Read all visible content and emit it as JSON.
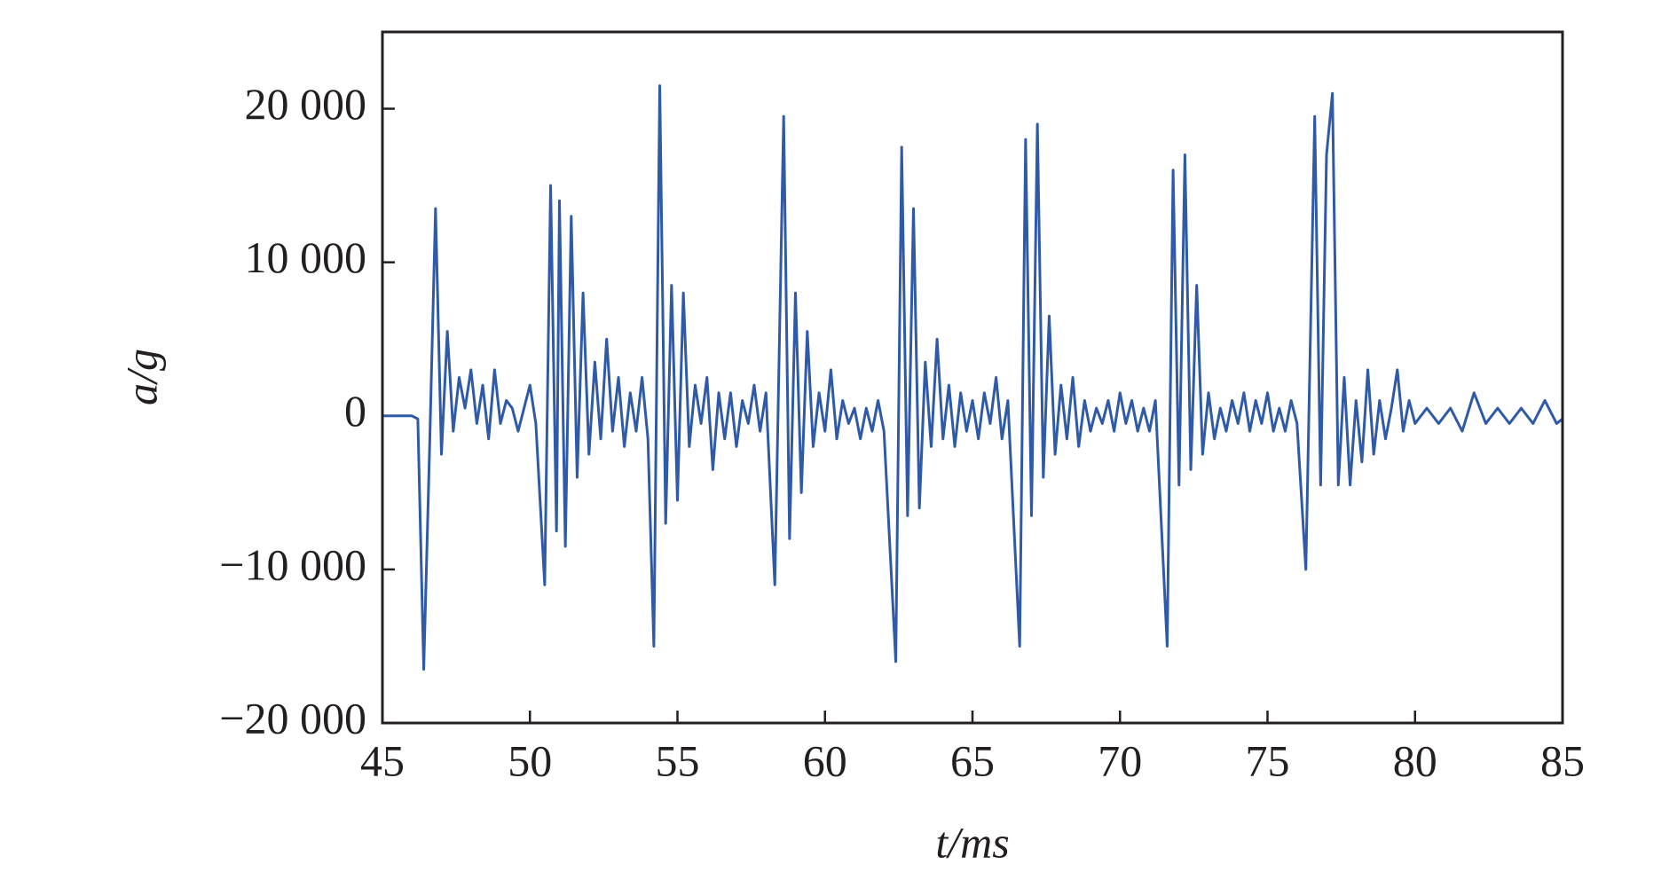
{
  "chart_data": {
    "type": "line",
    "xlabel": "t/ms",
    "ylabel": "a/g",
    "xlim": [
      45,
      85
    ],
    "xticks": [
      45,
      50,
      55,
      60,
      65,
      70,
      75,
      80,
      85
    ],
    "ylim": [
      -20000,
      25000
    ],
    "yticks": [
      {
        "value": -20000,
        "label": "−20 000"
      },
      {
        "value": -10000,
        "label": "−10 000"
      },
      0,
      {
        "value": 10000,
        "label": "10 000"
      },
      {
        "value": 20000,
        "label": "20 000"
      }
    ],
    "color": "#2f5aa8",
    "x": [
      45,
      46,
      46.2,
      46.4,
      46.6,
      46.8,
      47.0,
      47.2,
      47.4,
      47.6,
      47.8,
      48.0,
      48.2,
      48.4,
      48.6,
      48.8,
      49.0,
      49.2,
      49.4,
      49.6,
      49.8,
      50.0,
      50.2,
      50.5,
      50.7,
      50.9,
      51.0,
      51.2,
      51.4,
      51.6,
      51.8,
      52.0,
      52.2,
      52.4,
      52.6,
      52.8,
      53.0,
      53.2,
      53.4,
      53.6,
      53.8,
      54.0,
      54.2,
      54.4,
      54.6,
      54.8,
      55.0,
      55.2,
      55.4,
      55.6,
      55.8,
      56.0,
      56.2,
      56.4,
      56.6,
      56.8,
      57.0,
      57.2,
      57.4,
      57.6,
      57.8,
      58.0,
      58.3,
      58.6,
      58.8,
      59.0,
      59.2,
      59.4,
      59.6,
      59.8,
      60.0,
      60.2,
      60.4,
      60.6,
      60.8,
      61.0,
      61.2,
      61.4,
      61.6,
      61.8,
      62.0,
      62.4,
      62.6,
      62.8,
      63.0,
      63.2,
      63.4,
      63.6,
      63.8,
      64.0,
      64.2,
      64.4,
      64.6,
      64.8,
      65.0,
      65.2,
      65.4,
      65.6,
      65.8,
      66.0,
      66.2,
      66.6,
      66.8,
      67.0,
      67.2,
      67.4,
      67.6,
      67.8,
      68.0,
      68.2,
      68.4,
      68.6,
      68.8,
      69.0,
      69.2,
      69.4,
      69.6,
      69.8,
      70.0,
      70.2,
      70.4,
      70.6,
      70.8,
      71.0,
      71.2,
      71.6,
      71.8,
      72.0,
      72.2,
      72.4,
      72.6,
      72.8,
      73.0,
      73.2,
      73.4,
      73.6,
      73.8,
      74.0,
      74.2,
      74.4,
      74.6,
      74.8,
      75.0,
      75.2,
      75.4,
      75.6,
      75.8,
      76.0,
      76.3,
      76.6,
      76.8,
      77.0,
      77.2,
      77.4,
      77.6,
      77.8,
      78.0,
      78.2,
      78.4,
      78.6,
      78.8,
      79.0,
      79.2,
      79.4,
      79.6,
      79.8,
      80.0,
      80.4,
      80.8,
      81.2,
      81.6,
      82.0,
      82.4,
      82.8,
      83.2,
      83.6,
      84.0,
      84.4,
      84.8,
      85.0
    ],
    "values": [
      0,
      0,
      -200,
      -16500,
      -2000,
      13500,
      -2500,
      5500,
      -1000,
      2500,
      500,
      3000,
      -500,
      2000,
      -1500,
      3000,
      -500,
      1000,
      500,
      -1000,
      500,
      2000,
      -500,
      -11000,
      15000,
      -7500,
      14000,
      -8500,
      13000,
      -4000,
      8000,
      -2500,
      3500,
      -1500,
      5000,
      -1000,
      2500,
      -2000,
      1500,
      -1000,
      2500,
      -1500,
      -15000,
      21500,
      -7000,
      8500,
      -5500,
      8000,
      -2000,
      2000,
      -500,
      2500,
      -3500,
      1500,
      -1500,
      1500,
      -2000,
      1000,
      -500,
      2000,
      -1000,
      1500,
      -11000,
      19500,
      -8000,
      8000,
      -5000,
      5500,
      -2000,
      1500,
      -1000,
      3000,
      -1500,
      1000,
      -500,
      500,
      -1500,
      500,
      -1000,
      1000,
      -1000,
      -16000,
      17500,
      -6500,
      13500,
      -6000,
      3500,
      -2000,
      5000,
      -1500,
      2000,
      -2000,
      1500,
      -1000,
      1000,
      -1500,
      1500,
      -500,
      2500,
      -1500,
      1000,
      -15000,
      18000,
      -6500,
      19000,
      -4000,
      6500,
      -2500,
      2000,
      -1500,
      2500,
      -2000,
      1000,
      -1000,
      500,
      -500,
      1000,
      -1000,
      1500,
      -500,
      1000,
      -1000,
      500,
      -1000,
      1000,
      -15000,
      16000,
      -4500,
      17000,
      -3500,
      8500,
      -2500,
      1500,
      -1500,
      500,
      -1000,
      1000,
      -500,
      1500,
      -1000,
      1000,
      -500,
      1500,
      -1000,
      500,
      -1000,
      1000,
      -500,
      -10000,
      19500,
      -4500,
      17000,
      21000,
      -4500,
      2500,
      -4500,
      1000,
      -3000,
      3000,
      -2500,
      1000,
      -1500,
      500,
      3000,
      -1000,
      1000,
      -500,
      500,
      -500,
      500,
      -1000,
      1500,
      -500,
      500,
      -500,
      500,
      -500,
      1000,
      -500,
      -200
    ]
  }
}
